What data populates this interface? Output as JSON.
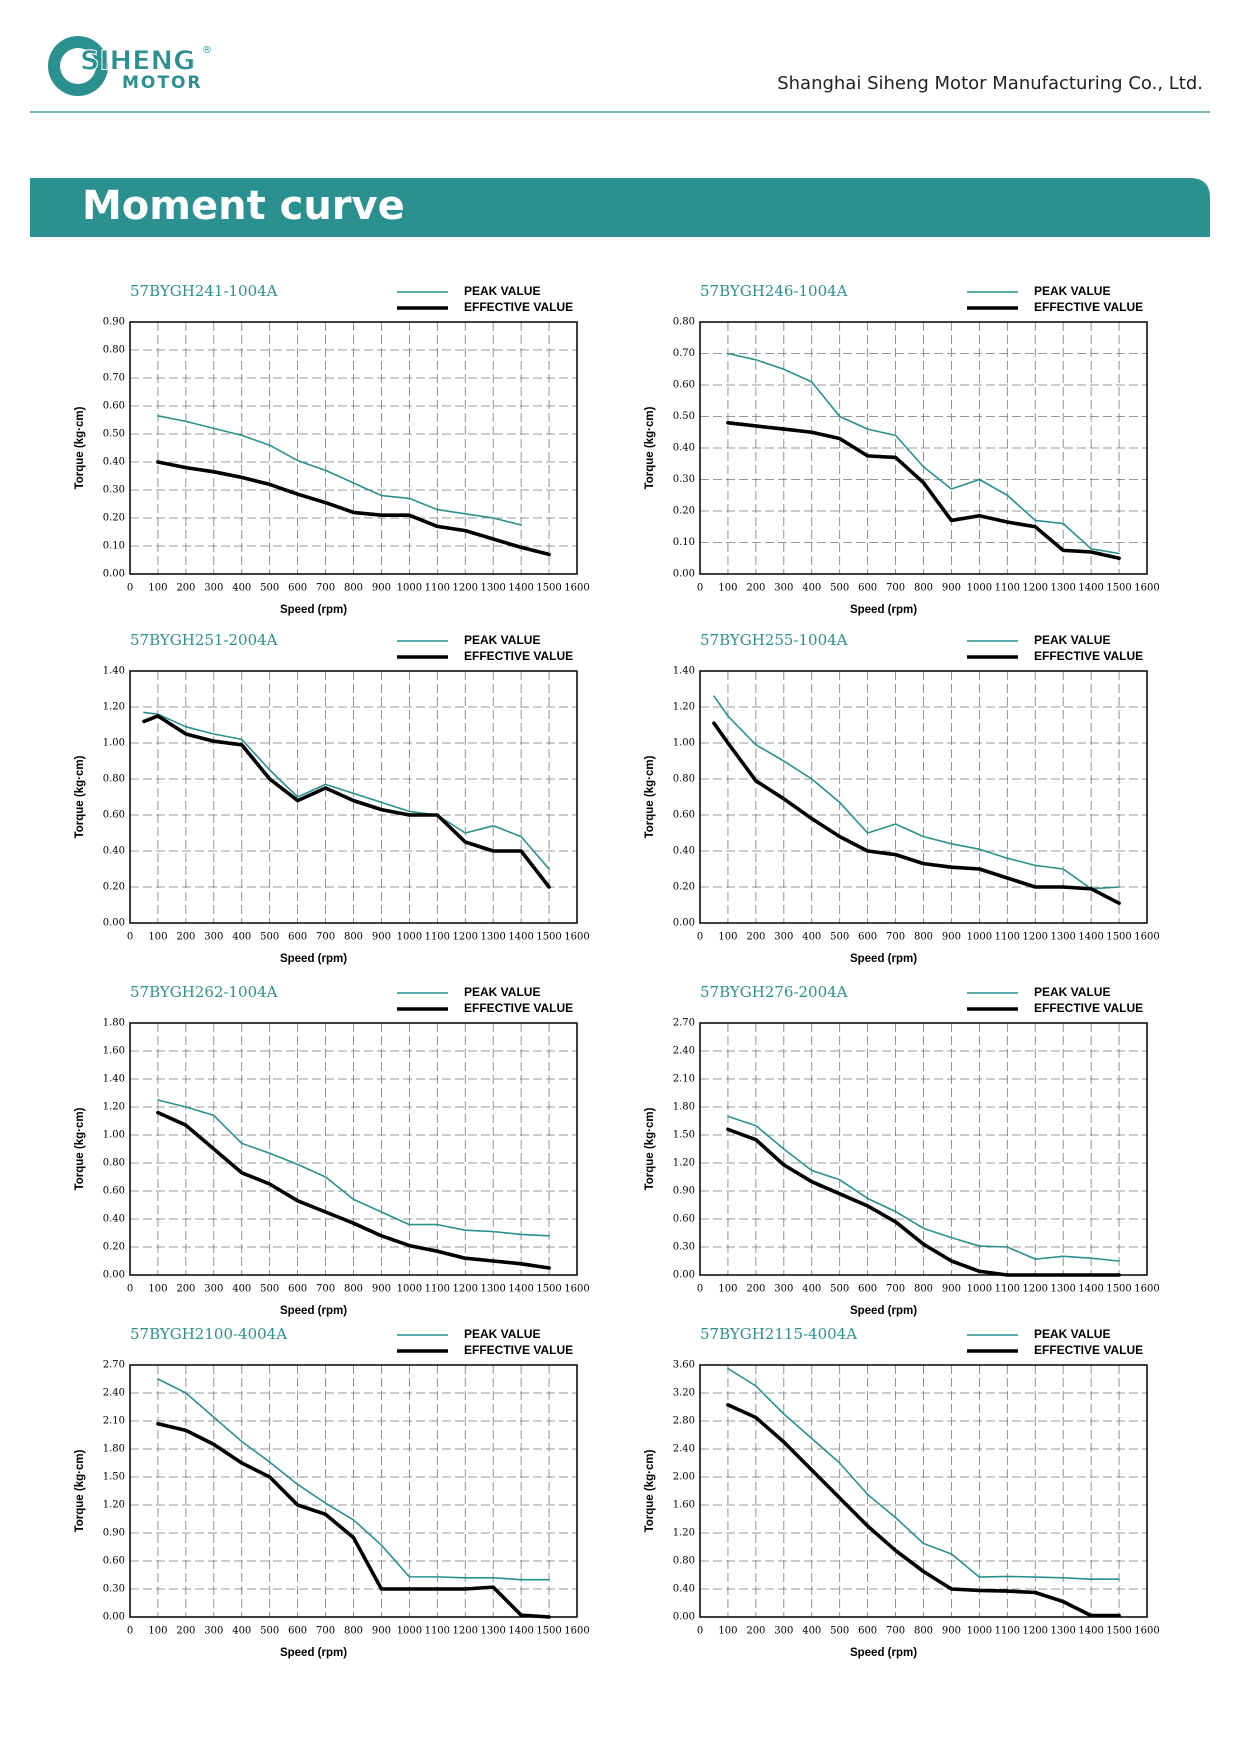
{
  "header": {
    "logo_text": "SIHENG",
    "logo_sub": "MOTOR",
    "logo_mark": "®",
    "company": "Shanghai Siheng Motor Manufacturing Co., Ltd."
  },
  "section_title": "Moment curve",
  "chart_data": [
    {
      "type": "line",
      "title": "57BYGH241-1004A",
      "xlabel": "Speed (rpm)",
      "ylabel": "Torque (kg·cm)",
      "x": [
        100,
        200,
        300,
        400,
        500,
        600,
        700,
        800,
        900,
        1000,
        1100,
        1200,
        1300,
        1400,
        1500
      ],
      "series": [
        {
          "name": "PEAK VALUE",
          "color": "#2a9090",
          "values": [
            0.565,
            0.545,
            0.52,
            0.495,
            0.46,
            0.405,
            0.37,
            0.325,
            0.28,
            0.27,
            0.23,
            0.215,
            0.2,
            0.175,
            null
          ]
        },
        {
          "name": "EFFECTIVE VALUE",
          "color": "#000000",
          "values": [
            0.4,
            0.38,
            0.365,
            0.345,
            0.32,
            0.285,
            0.255,
            0.22,
            0.21,
            0.21,
            0.17,
            0.155,
            0.125,
            0.095,
            0.07
          ]
        }
      ],
      "xlim": [
        0,
        1600
      ],
      "xticks": [
        0,
        100,
        200,
        300,
        400,
        500,
        600,
        700,
        800,
        900,
        1000,
        1100,
        1200,
        1300,
        1400,
        1500,
        1600
      ],
      "ylim": [
        0,
        0.9
      ],
      "yticks": [
        {
          "value": 0,
          "label": "0.00"
        },
        {
          "value": 0.1,
          "label": "0.10"
        },
        {
          "value": 0.2,
          "label": "0.20"
        },
        {
          "value": 0.3,
          "label": "0.30"
        },
        {
          "value": 0.4,
          "label": "0.40"
        },
        {
          "value": 0.5,
          "label": "0.50"
        },
        {
          "value": 0.6,
          "label": "0.60"
        },
        {
          "value": 0.7,
          "label": "0.70"
        },
        {
          "value": 0.8,
          "label": "0.80"
        },
        {
          "value": 0.9,
          "label": "0.90"
        }
      ],
      "grid": true
    },
    {
      "type": "line",
      "title": "57BYGH246-1004A",
      "xlabel": "Speed (rpm)",
      "ylabel": "Torque (kg·cm)",
      "x": [
        100,
        200,
        300,
        400,
        500,
        600,
        700,
        800,
        900,
        1000,
        1100,
        1200,
        1300,
        1400,
        1500
      ],
      "series": [
        {
          "name": "PEAK VALUE",
          "color": "#2a9090",
          "values": [
            0.7,
            0.68,
            0.65,
            0.61,
            0.5,
            0.46,
            0.44,
            0.34,
            0.27,
            0.3,
            0.25,
            0.17,
            0.16,
            0.08,
            0.065
          ]
        },
        {
          "name": "EFFECTIVE VALUE",
          "color": "#000000",
          "values": [
            0.48,
            0.47,
            0.46,
            0.45,
            0.43,
            0.375,
            0.37,
            0.29,
            0.17,
            0.185,
            0.165,
            0.15,
            0.075,
            0.07,
            0.05
          ]
        }
      ],
      "xlim": [
        0,
        1600
      ],
      "xticks": [
        0,
        100,
        200,
        300,
        400,
        500,
        600,
        700,
        800,
        900,
        1000,
        1100,
        1200,
        1300,
        1400,
        1500,
        1600
      ],
      "ylim": [
        0,
        0.8
      ],
      "yticks": [
        {
          "value": 0,
          "label": "0.00"
        },
        {
          "value": 0.1,
          "label": "0.10"
        },
        {
          "value": 0.2,
          "label": "0.20"
        },
        {
          "value": 0.3,
          "label": "0.30"
        },
        {
          "value": 0.4,
          "label": "0.40"
        },
        {
          "value": 0.5,
          "label": "0.50"
        },
        {
          "value": 0.6,
          "label": "0.60"
        },
        {
          "value": 0.7,
          "label": "0.70"
        },
        {
          "value": 0.8,
          "label": "0.80"
        }
      ],
      "grid": true
    },
    {
      "type": "line",
      "title": "57BYGH251-2004A",
      "xlabel": "Speed (rpm)",
      "ylabel": "Torque (kg·cm)",
      "x": [
        50,
        100,
        200,
        300,
        400,
        500,
        600,
        700,
        800,
        900,
        1000,
        1100,
        1200,
        1300,
        1400,
        1500
      ],
      "series": [
        {
          "name": "PEAK VALUE",
          "color": "#2a9090",
          "values": [
            1.17,
            1.16,
            1.09,
            1.05,
            1.02,
            0.85,
            0.7,
            0.77,
            0.72,
            0.67,
            0.62,
            0.6,
            0.5,
            0.54,
            0.48,
            0.3
          ]
        },
        {
          "name": "EFFECTIVE VALUE",
          "color": "#000000",
          "values": [
            1.12,
            1.15,
            1.05,
            1.01,
            0.99,
            0.8,
            0.68,
            0.75,
            0.68,
            0.63,
            0.6,
            0.6,
            0.45,
            0.4,
            0.4,
            0.2
          ]
        }
      ],
      "xlim": [
        0,
        1600
      ],
      "xticks": [
        0,
        100,
        200,
        300,
        400,
        500,
        600,
        700,
        800,
        900,
        1000,
        1100,
        1200,
        1300,
        1400,
        1500,
        1600
      ],
      "ylim": [
        0,
        1.4
      ],
      "yticks": [
        {
          "value": 0,
          "label": "0.00"
        },
        {
          "value": 0.2,
          "label": "0.20"
        },
        {
          "value": 0.4,
          "label": "0.40"
        },
        {
          "value": 0.6,
          "label": "0.60"
        },
        {
          "value": 0.8,
          "label": "0.80"
        },
        {
          "value": 1,
          "label": "1.00"
        },
        {
          "value": 1.2,
          "label": "1.20"
        },
        {
          "value": 1.4,
          "label": "1.40"
        }
      ],
      "grid": true
    },
    {
      "type": "line",
      "title": "57BYGH255-1004A",
      "xlabel": "Speed (rpm)",
      "ylabel": "Torque (kg·cm)",
      "x": [
        50,
        100,
        200,
        300,
        400,
        500,
        600,
        700,
        800,
        900,
        1000,
        1100,
        1200,
        1300,
        1400,
        1500
      ],
      "series": [
        {
          "name": "PEAK VALUE",
          "color": "#2a9090",
          "values": [
            1.26,
            1.15,
            0.99,
            0.9,
            0.8,
            0.67,
            0.5,
            0.55,
            0.48,
            0.44,
            0.41,
            0.36,
            0.32,
            0.3,
            0.19,
            0.2
          ]
        },
        {
          "name": "EFFECTIVE VALUE",
          "color": "#000000",
          "values": [
            1.11,
            1.0,
            0.79,
            0.69,
            0.58,
            0.48,
            0.4,
            0.38,
            0.33,
            0.31,
            0.3,
            0.25,
            0.2,
            0.2,
            0.19,
            0.11
          ]
        }
      ],
      "xlim": [
        0,
        1600
      ],
      "xticks": [
        0,
        100,
        200,
        300,
        400,
        500,
        600,
        700,
        800,
        900,
        1000,
        1100,
        1200,
        1300,
        1400,
        1500,
        1600
      ],
      "ylim": [
        0,
        1.4
      ],
      "yticks": [
        {
          "value": 0,
          "label": "0.00"
        },
        {
          "value": 0.2,
          "label": "0.20"
        },
        {
          "value": 0.4,
          "label": "0.40"
        },
        {
          "value": 0.6,
          "label": "0.60"
        },
        {
          "value": 0.8,
          "label": "0.80"
        },
        {
          "value": 1,
          "label": "1.00"
        },
        {
          "value": 1.2,
          "label": "1.20"
        },
        {
          "value": 1.4,
          "label": "1.40"
        }
      ],
      "grid": true
    },
    {
      "type": "line",
      "title": "57BYGH262-1004A",
      "xlabel": "Speed (rpm)",
      "ylabel": "Torque (kg·cm)",
      "x": [
        100,
        200,
        300,
        400,
        500,
        600,
        700,
        800,
        900,
        1000,
        1100,
        1200,
        1300,
        1400,
        1500
      ],
      "series": [
        {
          "name": "PEAK VALUE",
          "color": "#2a9090",
          "values": [
            1.25,
            1.2,
            1.14,
            0.94,
            0.87,
            0.79,
            0.7,
            0.54,
            0.45,
            0.36,
            0.36,
            0.32,
            0.31,
            0.29,
            0.28
          ]
        },
        {
          "name": "EFFECTIVE VALUE",
          "color": "#000000",
          "values": [
            1.16,
            1.07,
            0.9,
            0.73,
            0.65,
            0.53,
            0.45,
            0.37,
            0.28,
            0.21,
            0.17,
            0.12,
            0.1,
            0.08,
            0.05
          ]
        }
      ],
      "xlim": [
        0,
        1600
      ],
      "xticks": [
        0,
        100,
        200,
        300,
        400,
        500,
        600,
        700,
        800,
        900,
        1000,
        1100,
        1200,
        1300,
        1400,
        1500,
        1600
      ],
      "ylim": [
        0,
        1.8
      ],
      "yticks": [
        {
          "value": 0,
          "label": "0.00"
        },
        {
          "value": 0.2,
          "label": "0.20"
        },
        {
          "value": 0.4,
          "label": "0.40"
        },
        {
          "value": 0.6,
          "label": "0.60"
        },
        {
          "value": 0.8,
          "label": "0.80"
        },
        {
          "value": 1,
          "label": "1.00"
        },
        {
          "value": 1.2,
          "label": "1.20"
        },
        {
          "value": 1.4,
          "label": "1.40"
        },
        {
          "value": 1.6,
          "label": "1.60"
        },
        {
          "value": 1.8,
          "label": "1.80"
        }
      ],
      "grid": true
    },
    {
      "type": "line",
      "title": "57BYGH276-2004A",
      "xlabel": "Speed (rpm)",
      "ylabel": "Torque (kg·cm)",
      "x": [
        100,
        200,
        300,
        400,
        500,
        600,
        700,
        800,
        900,
        1000,
        1100,
        1200,
        1300,
        1400,
        1500
      ],
      "series": [
        {
          "name": "PEAK VALUE",
          "color": "#2a9090",
          "values": [
            1.7,
            1.6,
            1.35,
            1.12,
            1.02,
            0.82,
            0.68,
            0.5,
            0.4,
            0.31,
            0.3,
            0.17,
            0.2,
            0.18,
            0.15
          ]
        },
        {
          "name": "EFFECTIVE VALUE",
          "color": "#000000",
          "values": [
            1.56,
            1.45,
            1.18,
            1.0,
            0.87,
            0.74,
            0.57,
            0.33,
            0.15,
            0.04,
            0,
            0,
            0,
            0,
            0
          ]
        }
      ],
      "xlim": [
        0,
        1600
      ],
      "xticks": [
        0,
        100,
        200,
        300,
        400,
        500,
        600,
        700,
        800,
        900,
        1000,
        1100,
        1200,
        1300,
        1400,
        1500,
        1600
      ],
      "ylim": [
        0,
        2.7
      ],
      "yticks": [
        {
          "value": 0,
          "label": "0.00"
        },
        {
          "value": 0.3,
          "label": "0.30"
        },
        {
          "value": 0.6,
          "label": "0.60"
        },
        {
          "value": 0.9,
          "label": "0.90"
        },
        {
          "value": 1.2,
          "label": "1.20"
        },
        {
          "value": 1.5,
          "label": "1.50"
        },
        {
          "value": 1.8,
          "label": "1.80"
        },
        {
          "value": 2.1,
          "label": "2.10"
        },
        {
          "value": 2.4,
          "label": "2.40"
        },
        {
          "value": 2.7,
          "label": "2.70"
        }
      ],
      "grid": true
    },
    {
      "type": "line",
      "title": "57BYGH2100-4004A",
      "xlabel": "Speed (rpm)",
      "ylabel": "Torque (kg·cm)",
      "x": [
        100,
        200,
        300,
        400,
        500,
        600,
        700,
        800,
        900,
        1000,
        1100,
        1200,
        1300,
        1400,
        1500
      ],
      "series": [
        {
          "name": "PEAK VALUE",
          "color": "#2a9090",
          "values": [
            2.55,
            2.4,
            2.14,
            1.88,
            1.66,
            1.42,
            1.22,
            1.04,
            0.77,
            0.43,
            0.43,
            0.42,
            0.42,
            0.4,
            0.4
          ]
        },
        {
          "name": "EFFECTIVE VALUE",
          "color": "#000000",
          "values": [
            2.07,
            2.0,
            1.85,
            1.65,
            1.5,
            1.2,
            1.1,
            0.85,
            0.3,
            0.3,
            0.3,
            0.3,
            0.32,
            0.02,
            0
          ]
        }
      ],
      "xlim": [
        0,
        1600
      ],
      "xticks": [
        0,
        100,
        200,
        300,
        400,
        500,
        600,
        700,
        800,
        900,
        1000,
        1100,
        1200,
        1300,
        1400,
        1500,
        1600
      ],
      "ylim": [
        0,
        2.7
      ],
      "yticks": [
        {
          "value": 0,
          "label": "0.00"
        },
        {
          "value": 0.3,
          "label": "0.30"
        },
        {
          "value": 0.6,
          "label": "0.60"
        },
        {
          "value": 0.9,
          "label": "0.90"
        },
        {
          "value": 1.2,
          "label": "1.20"
        },
        {
          "value": 1.5,
          "label": "1.50"
        },
        {
          "value": 1.8,
          "label": "1.80"
        },
        {
          "value": 2.1,
          "label": "2.10"
        },
        {
          "value": 2.4,
          "label": "2.40"
        },
        {
          "value": 2.7,
          "label": "2.70"
        }
      ],
      "grid": true
    },
    {
      "type": "line",
      "title": "57BYGH2115-4004A",
      "xlabel": "Speed (rpm)",
      "ylabel": "Torque (kg·cm)",
      "x": [
        100,
        200,
        300,
        400,
        500,
        600,
        700,
        800,
        900,
        1000,
        1100,
        1200,
        1300,
        1400,
        1500
      ],
      "series": [
        {
          "name": "PEAK VALUE",
          "color": "#2a9090",
          "values": [
            3.55,
            3.3,
            2.9,
            2.55,
            2.2,
            1.75,
            1.42,
            1.05,
            0.9,
            0.57,
            0.58,
            0.57,
            0.56,
            0.54,
            0.54
          ]
        },
        {
          "name": "EFFECTIVE VALUE",
          "color": "#000000",
          "values": [
            3.03,
            2.85,
            2.5,
            2.1,
            1.7,
            1.3,
            0.95,
            0.65,
            0.4,
            0.38,
            0.37,
            0.35,
            0.22,
            0.02,
            0.02
          ]
        }
      ],
      "xlim": [
        0,
        1600
      ],
      "xticks": [
        0,
        100,
        200,
        300,
        400,
        500,
        600,
        700,
        800,
        900,
        1000,
        1100,
        1200,
        1300,
        1400,
        1500,
        1600
      ],
      "ylim": [
        0,
        3.6
      ],
      "yticks": [
        {
          "value": 0,
          "label": "0.00"
        },
        {
          "value": 0.4,
          "label": "0.40"
        },
        {
          "value": 0.8,
          "label": "0.80"
        },
        {
          "value": 1.2,
          "label": "1.20"
        },
        {
          "value": 1.6,
          "label": "1.60"
        },
        {
          "value": 2,
          "label": "2.00"
        },
        {
          "value": 2.4,
          "label": "2.40"
        },
        {
          "value": 2.8,
          "label": "2.80"
        },
        {
          "value": 3.2,
          "label": "3.20"
        },
        {
          "value": 3.6,
          "label": "3.60"
        }
      ],
      "grid": true
    }
  ]
}
